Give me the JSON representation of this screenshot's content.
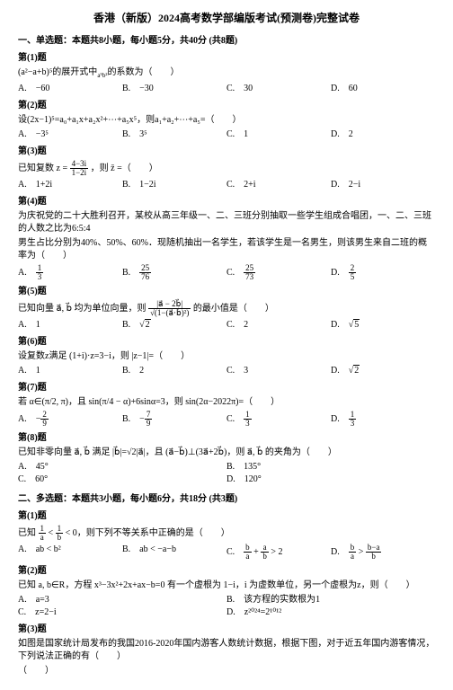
{
  "title": "香港（新版）2024高考数学部编版考试(预测卷)完整试卷",
  "section1_head": "一、单选题：本题共8小题，每小题5分，共40分 (共8题)",
  "q1": {
    "num": "第(1)题",
    "stem_pre": "(a²−a+b)⁵的展开式中",
    "stem_mid": "a⁵b²",
    "stem_post": "的系数为（　　）",
    "A": "A.　−60",
    "B": "B.　−30",
    "C": "C.　30",
    "D": "D.　60"
  },
  "q2": {
    "num": "第(2)题",
    "stem": "设(2x−1)⁵=a₀+a₁x+a₂x²+⋯+a₅x⁵，则a₁+a₂+⋯+a₅=（　　）",
    "A": "A.　−3⁵",
    "B": "B.　3⁵",
    "C": "C.　1",
    "D": "D.　2"
  },
  "q3": {
    "num": "第(3)题",
    "stem_pre": "已知复数 z = ",
    "frac_num": "4−3i",
    "frac_den": "1−2i",
    "stem_post": "，则 z̄ =（　　）",
    "A": "A.　1+2i",
    "B": "B.　1−2i",
    "C": "C.　2+i",
    "D": "D.　2−i"
  },
  "q4": {
    "num": "第(4)题",
    "stem_l1": "为庆祝党的二十大胜利召开，某校从高三年级一、二、三班分别抽取一些学生组成合唱团，一、二、三班的人数之比为6:5:4",
    "stem_l2": "男生占比分别为40%、50%、60%．现随机抽出一名学生，若该学生是一名男生，则该男生来自二班的概率为（　　）",
    "A_pre": "A.　",
    "A_num": "1",
    "A_den": "3",
    "B_pre": "B.　",
    "B_num": "25",
    "B_den": "76",
    "C_pre": "C.　",
    "C_num": "25",
    "C_den": "73",
    "D_pre": "D.　",
    "D_num": "2",
    "D_den": "5"
  },
  "q5": {
    "num": "第(5)题",
    "stem_pre": "已知向量 a⃗, b⃗ 均为单位向量，则 ",
    "frac_num": "|a⃗ − 2b⃗|",
    "frac_den": "√(1−(a⃗·b⃗)²)",
    "stem_post": " 的最小值是（　　）",
    "A": "A.　1",
    "B_pre": "B.　",
    "B_rad": "2",
    "C": "C.　2",
    "D_pre": "D.　",
    "D_rad": "5"
  },
  "q6": {
    "num": "第(6)题",
    "stem": "设复数z满足 (1+i)·z=3−i，则 |z−1|=（　　）",
    "A": "A.　1",
    "B": "B.　2",
    "C": "C.　3",
    "D_pre": "D.　",
    "D_rad": "2"
  },
  "q7": {
    "num": "第(7)题",
    "stem": "若 α∈(π/2, π)，且 sin(π/4 − α)+6sinα=3，则 sin(2α−2022π)=（　　）",
    "A_pre": "A.　−",
    "A_num": "2",
    "A_den": "9",
    "B_pre": "B.　−",
    "B_num": "7",
    "B_den": "9",
    "C_pre": "C.　",
    "C_num": "1",
    "C_den": "3",
    "D_pre": "D.　",
    "D_num": "1",
    "D_den": "3"
  },
  "q8": {
    "num": "第(8)题",
    "stem": "已知非零向量 a⃗, b⃗ 满足 |b⃗|=√2|a⃗|，且 (a⃗−b⃗)⊥(3a⃗+2b⃗)，则 a⃗, b⃗ 的夹角为（　　）",
    "A": "A.　45°",
    "B": "B.　135°",
    "C": "C.　60°",
    "D": "D.　120°"
  },
  "section2_head": "二、多选题：本题共3小题，每小题6分，共18分 (共3题)",
  "m1": {
    "num": "第(1)题",
    "stem_pre": "已知 ",
    "frac_num": "1",
    "frac_den": "a",
    "stem_mid": " < ",
    "frac2_num": "1",
    "frac2_den": "b",
    "stem_post": " < 0，则下列不等关系中正确的是（　　）",
    "A": "A.　ab < b²",
    "B": "B.　ab < −a−b",
    "C_pre": "C.　",
    "C_num": "b",
    "C_den": "a",
    "C_mid": " + ",
    "C_num2": "a",
    "C_den2": "b",
    "C_post": " > 2",
    "D_pre": "D.　",
    "D_num": "b",
    "D_den": "a",
    "D_mid": " > ",
    "D_num2": "b−a",
    "D_den2": "b"
  },
  "m2": {
    "num": "第(2)题",
    "stem": "已知 a, b∈R，方程 x³−3x²+2x+ax−b=0 有一个虚根为 1−i，i 为虚数单位，另一个虚根为z，则（　　）",
    "A": "A.　a=3",
    "B": "B.　该方程的实数根为1",
    "C": "C.　z=2−i",
    "D": "D.　z²⁰²⁴=2¹⁰¹²"
  },
  "m3": {
    "num": "第(3)题",
    "stem": "如图是国家统计局发布的我国2016-2020年国内游客人数统计数据，根据下图，对于近五年国内游客情况，下列说法正确的有（　　）"
  }
}
